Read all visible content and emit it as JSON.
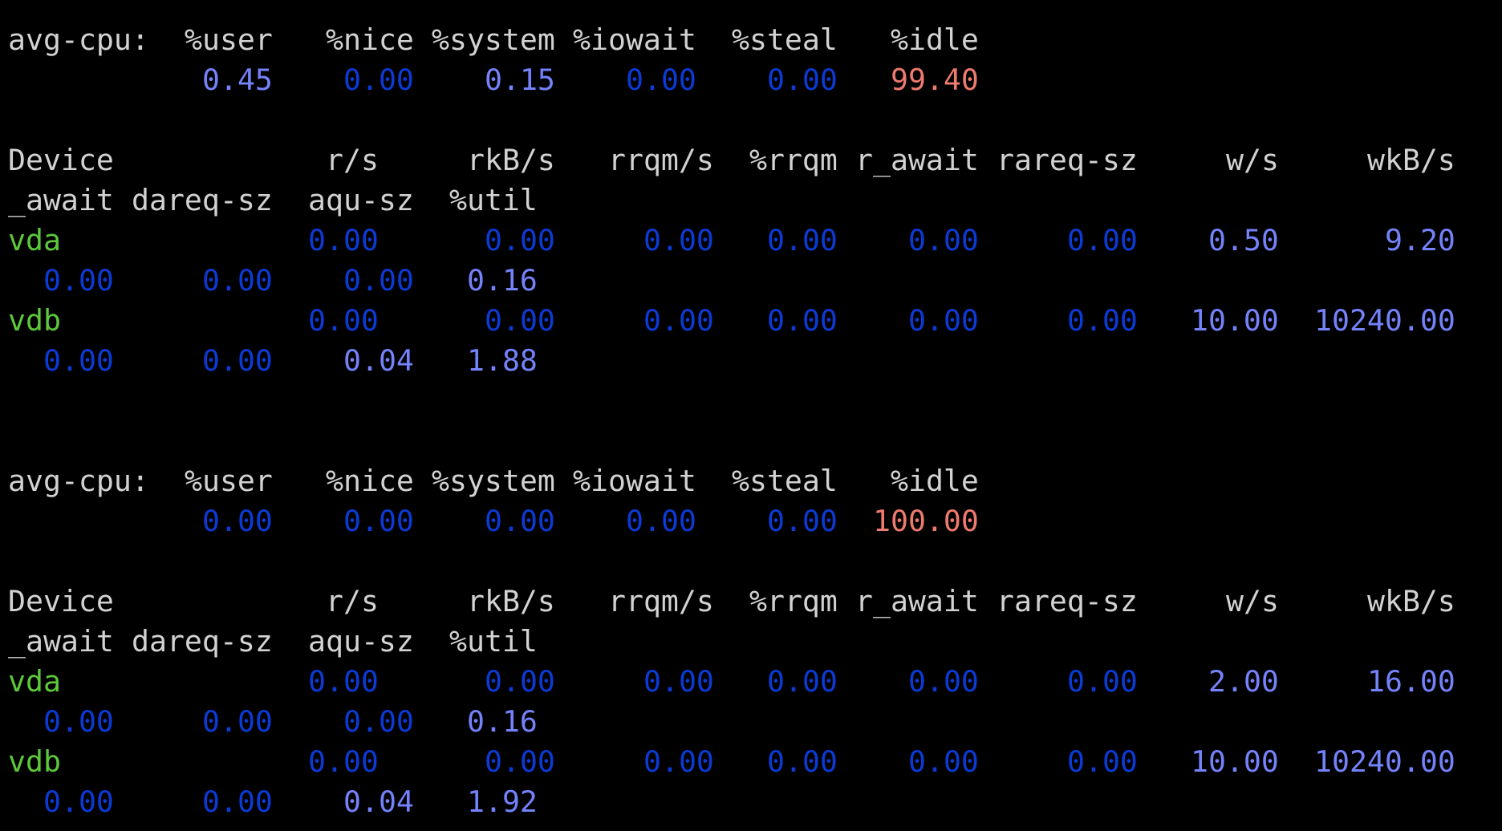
{
  "colors": {
    "background": "#000000",
    "header": "#d2d2d2",
    "zero_value": "#0b3ad6",
    "nonzero_value": "#7482fb",
    "idle_value": "#ef7a6e",
    "device": "#5cc83a"
  },
  "cpu_label": "avg-cpu:",
  "cpu_headers": [
    "%user",
    "%nice",
    "%system",
    "%iowait",
    "%steal",
    "%idle"
  ],
  "device_label": "Device",
  "device_headers_line1": [
    "r/s",
    "rkB/s",
    "rrqm/s",
    "%rrqm",
    "r_await",
    "rareq-sz",
    "w/s",
    "wkB/s"
  ],
  "device_headers_line2": [
    "_await",
    "dareq-sz",
    "aqu-sz",
    "%util"
  ],
  "reports": [
    {
      "cpu_values": [
        "0.45",
        "0.00",
        "0.15",
        "0.00",
        "0.00",
        "99.40"
      ],
      "devices": [
        {
          "name": "vda",
          "line1": [
            "0.00",
            "0.00",
            "0.00",
            "0.00",
            "0.00",
            "0.00",
            "0.50",
            "9.20"
          ],
          "line2": [
            "0.00",
            "0.00",
            "0.00",
            "0.16"
          ]
        },
        {
          "name": "vdb",
          "line1": [
            "0.00",
            "0.00",
            "0.00",
            "0.00",
            "0.00",
            "0.00",
            "10.00",
            "10240.00"
          ],
          "line2": [
            "0.00",
            "0.00",
            "0.04",
            "1.88"
          ]
        }
      ]
    },
    {
      "cpu_values": [
        "0.00",
        "0.00",
        "0.00",
        "0.00",
        "0.00",
        "100.00"
      ],
      "devices": [
        {
          "name": "vda",
          "line1": [
            "0.00",
            "0.00",
            "0.00",
            "0.00",
            "0.00",
            "0.00",
            "2.00",
            "16.00"
          ],
          "line2": [
            "0.00",
            "0.00",
            "0.00",
            "0.16"
          ]
        },
        {
          "name": "vdb",
          "line1": [
            "0.00",
            "0.00",
            "0.00",
            "0.00",
            "0.00",
            "0.00",
            "10.00",
            "10240.00"
          ],
          "line2": [
            "0.00",
            "0.00",
            "0.04",
            "1.92"
          ]
        }
      ]
    }
  ]
}
